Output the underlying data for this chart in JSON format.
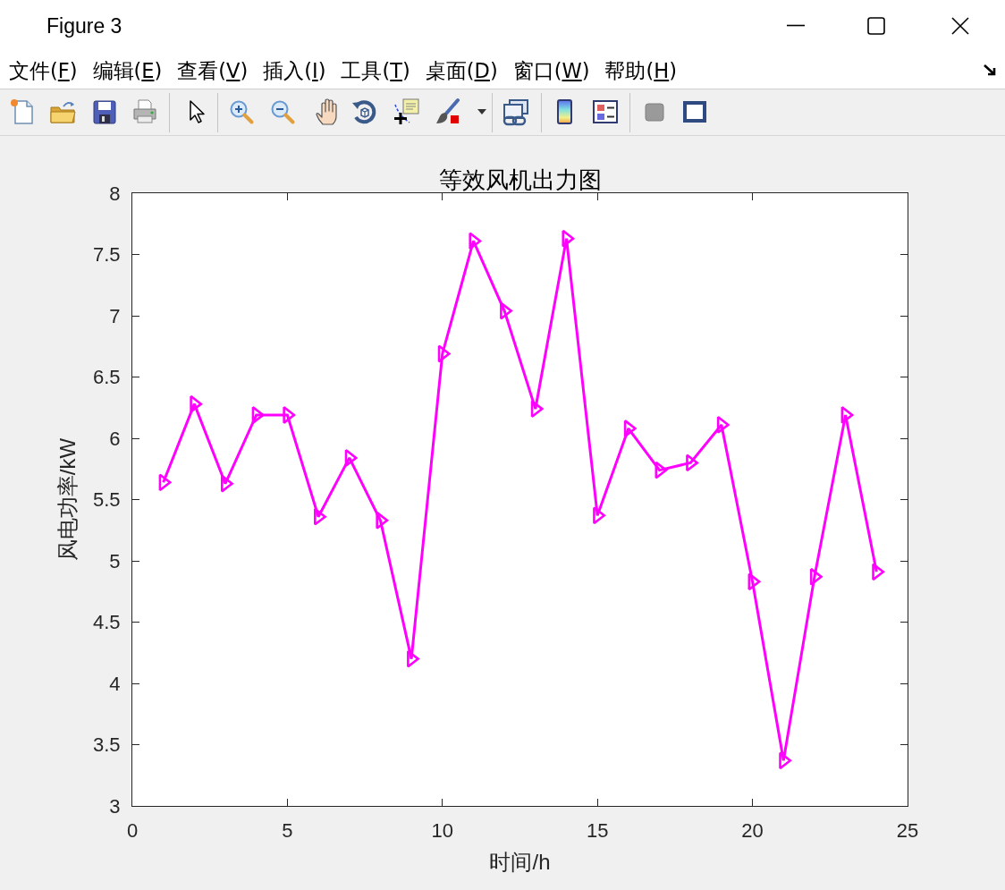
{
  "chart_data": {
    "type": "line",
    "title": "等效风机出力图",
    "xlabel": "时间/h",
    "ylabel": "风电功率/kW",
    "x": [
      1,
      2,
      3,
      4,
      5,
      6,
      7,
      8,
      9,
      10,
      11,
      12,
      13,
      14,
      15,
      16,
      17,
      18,
      19,
      20,
      21,
      22,
      23,
      24
    ],
    "series": [
      {
        "color": "#ff00ff",
        "values": [
          5.64,
          6.28,
          5.63,
          6.19,
          6.19,
          5.36,
          5.84,
          5.33,
          4.2,
          6.69,
          7.61,
          7.04,
          6.24,
          7.63,
          5.37,
          6.08,
          5.74,
          5.8,
          6.11,
          4.83,
          3.37,
          4.87,
          6.19,
          4.91
        ]
      }
    ],
    "xlim": [
      0,
      25
    ],
    "xticks": [
      0,
      5,
      10,
      15,
      20,
      25
    ],
    "ylim": [
      3,
      8
    ],
    "yticks": [
      3,
      3.5,
      4,
      4.5,
      5,
      5.5,
      6,
      6.5,
      7,
      7.5,
      8
    ],
    "marker": "triangle",
    "line_style": "solid",
    "annotations": [
      "Figure 3",
      "文件(F)",
      "编辑(E)",
      "查看(V)",
      "插入(I)",
      "工具(T)",
      "桌面(D)",
      "窗口(W)",
      "帮助(H)"
    ]
  }
}
